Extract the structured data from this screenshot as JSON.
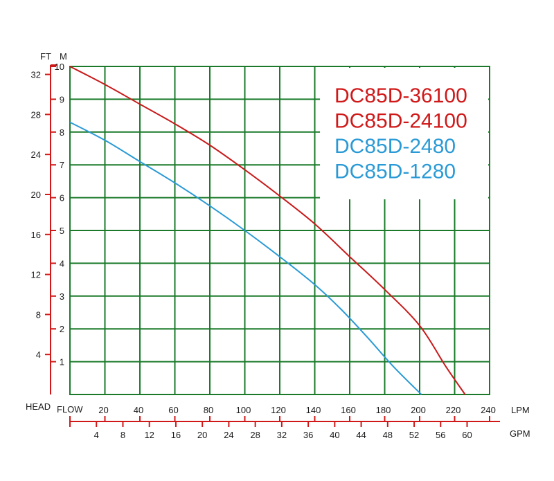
{
  "chart_data": {
    "type": "line",
    "xlabel": "FLOW",
    "ylabel": "HEAD",
    "x_unit_primary": "LPM",
    "x_unit_secondary": "GPM",
    "y_unit_primary": "M",
    "y_unit_secondary": "FT",
    "xlim": [
      0,
      240
    ],
    "ylim": [
      0,
      10
    ],
    "gpm_lim": [
      0,
      63.4
    ],
    "ft_lim": [
      0,
      32.8
    ],
    "x_ticks": [
      "20",
      "40",
      "60",
      "80",
      "100",
      "120",
      "140",
      "160",
      "180",
      "200",
      "220",
      "240"
    ],
    "y_ticks_m": [
      "1",
      "2",
      "3",
      "4",
      "5",
      "6",
      "7",
      "8",
      "9",
      "10"
    ],
    "y_ticks_ft": [
      "4",
      "8",
      "12",
      "16",
      "20",
      "24",
      "28",
      "32"
    ],
    "gpm_ticks": [
      "4",
      "8",
      "12",
      "16",
      "20",
      "24",
      "28",
      "32",
      "36",
      "40",
      "44",
      "48",
      "52",
      "56",
      "60"
    ],
    "grid": true,
    "legend_position": "top-right",
    "legend_entries": [
      {
        "label": "DC85D-36100",
        "color": "#d01818"
      },
      {
        "label": "DC85D-24100",
        "color": "#d01818"
      },
      {
        "label": "DC85D-2480",
        "color": "#2a9ad6"
      },
      {
        "label": "DC85D-1280",
        "color": "#2a9ad6"
      }
    ],
    "series": [
      {
        "color": "#c81a1a",
        "points": [
          [
            0,
            10
          ],
          [
            20,
            9.45
          ],
          [
            40,
            8.85
          ],
          [
            60,
            8.25
          ],
          [
            80,
            7.6
          ],
          [
            100,
            6.85
          ],
          [
            120,
            6.05
          ],
          [
            140,
            5.2
          ],
          [
            160,
            4.2
          ],
          [
            180,
            3.2
          ],
          [
            200,
            2.1
          ],
          [
            215,
            0.85
          ],
          [
            226,
            0
          ]
        ]
      },
      {
        "color": "#2a9ad6",
        "points": [
          [
            0,
            8.3
          ],
          [
            20,
            7.75
          ],
          [
            40,
            7.1
          ],
          [
            60,
            6.45
          ],
          [
            80,
            5.75
          ],
          [
            100,
            5.0
          ],
          [
            120,
            4.2
          ],
          [
            140,
            3.35
          ],
          [
            155,
            2.6
          ],
          [
            170,
            1.75
          ],
          [
            185,
            0.85
          ],
          [
            201,
            0
          ]
        ]
      }
    ]
  }
}
